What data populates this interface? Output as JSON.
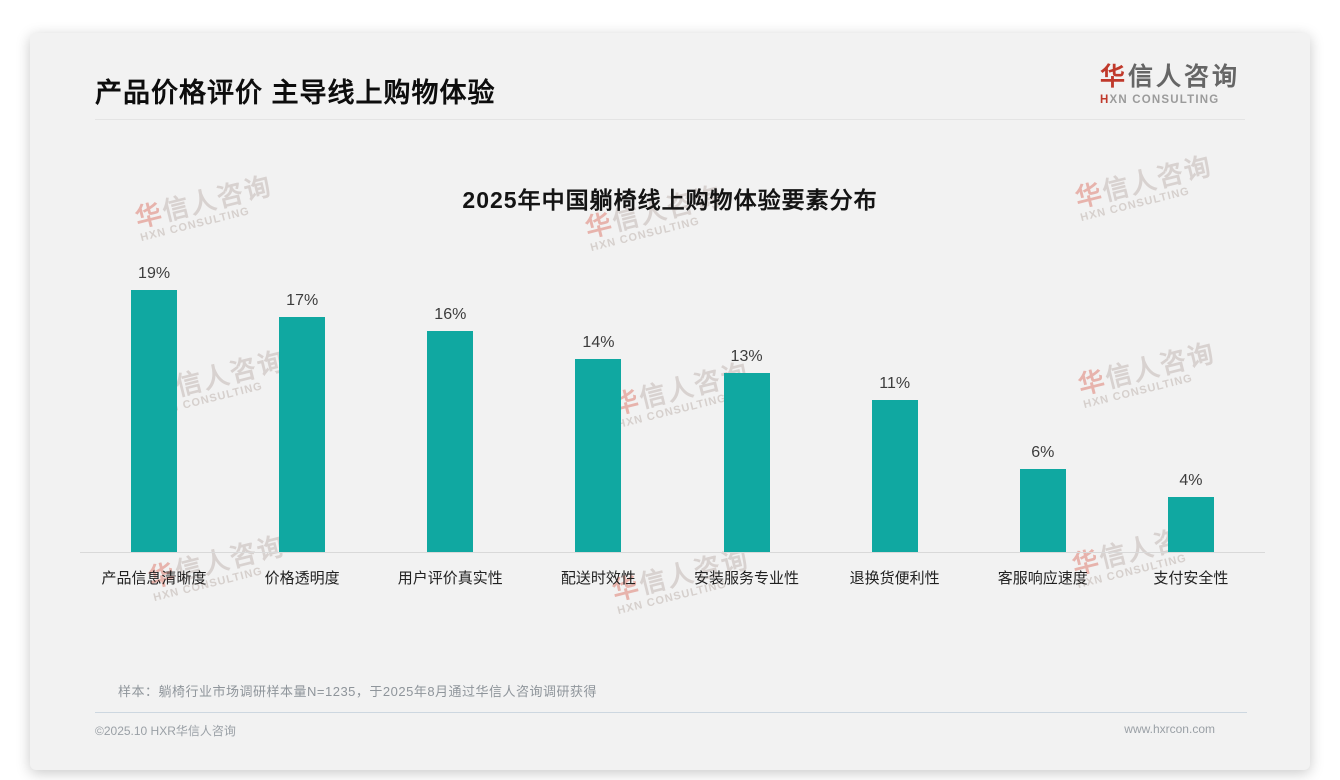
{
  "page": {
    "header": {
      "title": "产品价格评价 主导线上购物体验"
    },
    "logo": {
      "zh_accent": "华",
      "zh_rest": "信人咨询",
      "en_accent": "H",
      "en_rest": "XN CONSULTING"
    },
    "watermark": {
      "zh_accent": "华",
      "zh_rest": "信人咨询",
      "en": "HXN CONSULTING"
    },
    "note": "样本：躺椅行业市场调研样本量N=1235，于2025年8月通过华信人咨询调研获得",
    "footer": {
      "copyright": "©2025.10 HXR华信人咨询",
      "website": "www.hxrcon.com"
    }
  },
  "chart_data": {
    "type": "bar",
    "title": "2025年中国躺椅线上购物体验要素分布",
    "categories": [
      "产品信息清晰度",
      "价格透明度",
      "用户评价真实性",
      "配送时效性",
      "安装服务专业性",
      "退换货便利性",
      "客服响应速度",
      "支付安全性"
    ],
    "values": [
      19,
      17,
      16,
      14,
      13,
      11,
      6,
      4
    ],
    "unit": "%",
    "xlabel": "",
    "ylabel": "",
    "ylim": [
      0,
      20
    ],
    "grid": false,
    "legend": "none",
    "value_labels": true,
    "bar_color": "#10a8a1"
  }
}
